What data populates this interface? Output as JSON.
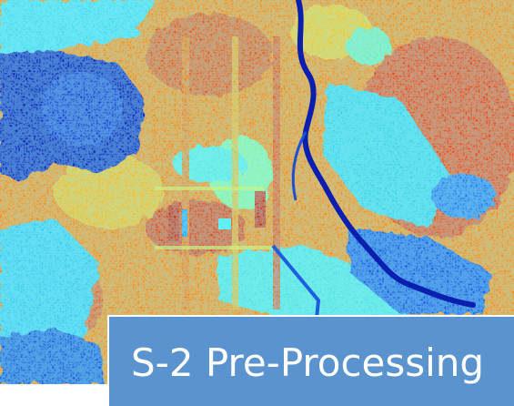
{
  "title": "S-2 Pre-Processing",
  "colors": {
    "background": "#ffffff",
    "title_box": "#5b93cf",
    "title_text": "#ffffff",
    "palette": [
      "#0a1fb0",
      "#1f5de0",
      "#2aa0f0",
      "#46e8f0",
      "#8cf0a0",
      "#e8ee3a",
      "#ffb21a",
      "#ff7a10",
      "#f24a14",
      "#d42a10"
    ]
  }
}
